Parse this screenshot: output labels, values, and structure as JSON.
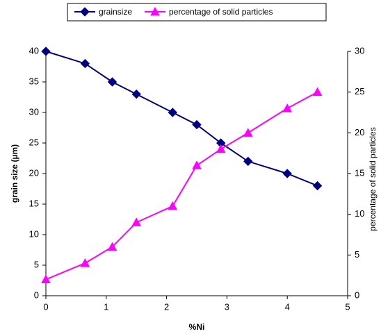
{
  "chart_data": {
    "type": "line",
    "x_label": "%Ni",
    "y_label": "grain size  (µm)",
    "y2_label": "percentage of solid particles",
    "x": [
      0,
      0.65,
      1.1,
      1.5,
      2.1,
      2.5,
      2.9,
      3.35,
      4,
      4.5
    ],
    "series": [
      {
        "name": "grainsize",
        "color": "#000080",
        "marker": "diamond",
        "values": [
          40,
          38,
          35,
          33,
          30,
          28,
          25,
          22,
          20,
          18
        ]
      },
      {
        "name": "percentage of solid particles",
        "color": "#ff00ff",
        "marker": "triangle",
        "axis": "y2",
        "values": [
          2,
          4,
          6,
          9,
          11,
          16,
          18,
          20,
          23,
          25
        ]
      }
    ],
    "xlim": [
      0,
      5
    ],
    "xticks": [
      0,
      1,
      2,
      3,
      4,
      5
    ],
    "ylim": [
      0,
      40
    ],
    "yticks": [
      0,
      5,
      10,
      15,
      20,
      25,
      30,
      35,
      40
    ],
    "y2lim": [
      0,
      30
    ],
    "y2ticks": [
      0,
      5,
      10,
      15,
      20,
      25,
      30
    ],
    "legend": "top",
    "grid": false
  }
}
